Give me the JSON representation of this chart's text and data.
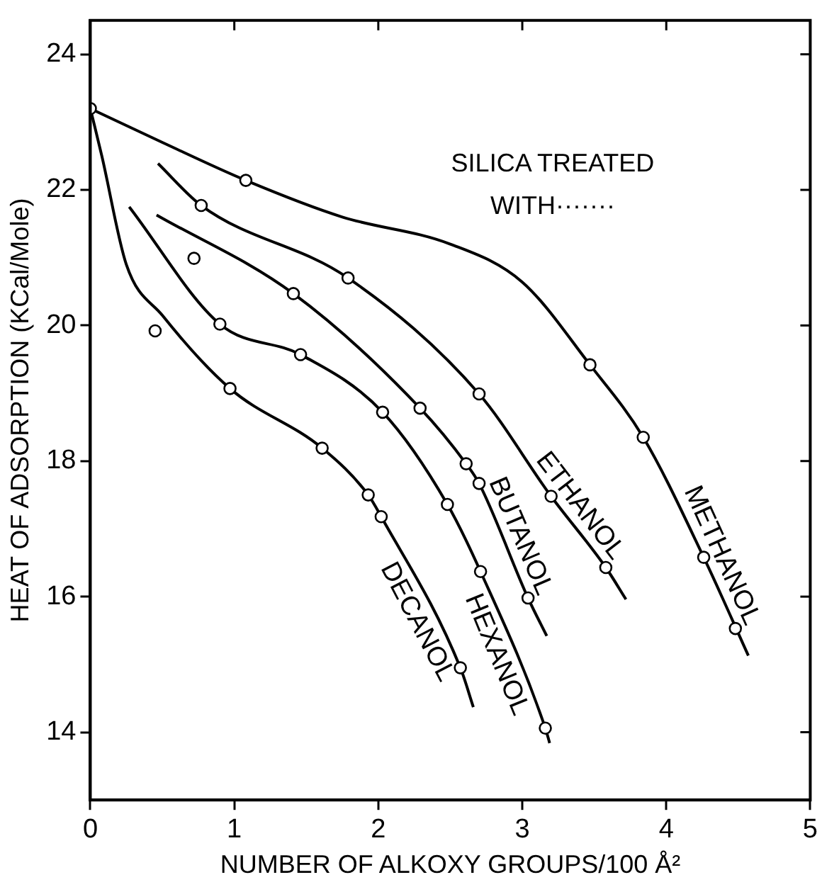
{
  "chart_data": {
    "type": "line",
    "xlabel": "NUMBER OF ALKOXY GROUPS/100 Å²",
    "ylabel": "HEAT OF ADSORPTION (KCal/Mole)",
    "annotations": [
      "SILICA TREATED WITH·······"
    ],
    "xlim": [
      0,
      5
    ],
    "xticks": [
      0,
      1,
      2,
      3,
      4,
      5
    ],
    "ylim": [
      13,
      24.5
    ],
    "yticks": [
      14,
      16,
      18,
      20,
      22,
      24
    ],
    "grid": false,
    "legend": false,
    "line_style": "solid",
    "series": [
      {
        "name": "METHANOL",
        "type": "line",
        "marker": "none",
        "color": "#000000",
        "x": [
          0,
          0.5,
          1.08,
          1.75,
          2.5,
          3.0,
          3.47,
          3.84,
          4.26,
          4.57
        ],
        "values": [
          23.2,
          22.7,
          22.14,
          21.6,
          21.2,
          20.64,
          19.42,
          18.35,
          16.58,
          15.13
        ]
      },
      {
        "name": "ETHANOL",
        "type": "line",
        "marker": "none",
        "color": "#000000",
        "x": [
          0.47,
          0.77,
          1.79,
          2.7,
          3.2,
          3.58,
          3.72
        ],
        "values": [
          22.39,
          21.77,
          20.7,
          18.99,
          17.48,
          16.43,
          15.96
        ]
      },
      {
        "name": "BUTANOL",
        "type": "line",
        "marker": "none",
        "color": "#000000",
        "x": [
          0.46,
          1.41,
          2.29,
          2.61,
          2.7,
          3.04,
          3.17
        ],
        "values": [
          21.63,
          20.47,
          18.78,
          17.96,
          17.67,
          15.98,
          15.42
        ]
      },
      {
        "name": "HEXANOL",
        "type": "line",
        "marker": "none",
        "color": "#000000",
        "x": [
          0.27,
          0.9,
          1.46,
          2.03,
          2.48,
          2.71,
          3.16,
          3.19
        ],
        "values": [
          21.75,
          20.02,
          19.57,
          18.72,
          17.36,
          16.37,
          14.06,
          13.84
        ]
      },
      {
        "name": "DECANOL",
        "type": "line",
        "marker": "none",
        "color": "#000000",
        "x": [
          0,
          0.08,
          0.25,
          0.5,
          0.97,
          1.61,
          1.93,
          2.02,
          2.57,
          2.66
        ],
        "values": [
          23.2,
          22.5,
          20.9,
          20.15,
          19.07,
          18.19,
          17.5,
          17.18,
          14.95,
          14.37
        ]
      },
      {
        "type": "scatter",
        "marker": "circle",
        "color": "#000000",
        "x": [
          0,
          1.08,
          3.47,
          3.84,
          4.26,
          4.48,
          0.77,
          1.79,
          2.7,
          3.2,
          3.58,
          0.72,
          1.41,
          2.29,
          2.61,
          2.7,
          3.04,
          0.9,
          1.46,
          2.03,
          2.48,
          2.71,
          3.16,
          0.45,
          0.97,
          1.61,
          1.93,
          2.02,
          2.57
        ],
        "values": [
          23.2,
          22.14,
          19.42,
          18.35,
          16.58,
          15.53,
          21.77,
          20.7,
          18.99,
          17.48,
          16.43,
          20.99,
          20.47,
          18.78,
          17.96,
          17.67,
          15.98,
          20.02,
          19.57,
          18.72,
          17.36,
          16.37,
          14.06,
          19.92,
          19.07,
          18.19,
          17.5,
          17.18,
          14.95
        ]
      }
    ]
  }
}
